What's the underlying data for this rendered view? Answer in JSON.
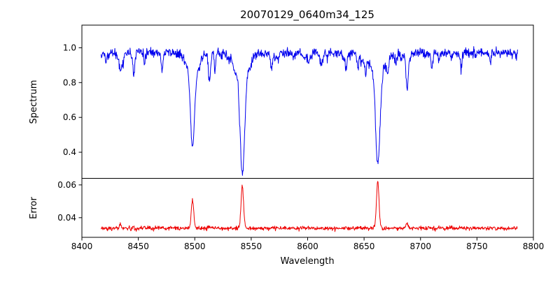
{
  "chart_data": {
    "type": "line",
    "title": "20070129_0640m34_125",
    "xlabel": "Wavelength",
    "xlim": [
      8400,
      8800
    ],
    "x_data_range": [
      8417,
      8786
    ],
    "xticks": {
      "values": [
        8400,
        8450,
        8500,
        8550,
        8600,
        8650,
        8700,
        8750,
        8800
      ],
      "labels": [
        "8400",
        "8450",
        "8500",
        "8550",
        "8600",
        "8650",
        "8700",
        "8750",
        "8800"
      ]
    },
    "panels": [
      {
        "name": "spectrum",
        "ylabel": "Spectrum",
        "ylim": [
          0.25,
          1.13
        ],
        "yticks": {
          "values": [
            0.4,
            0.6,
            0.8,
            1.0
          ],
          "labels": [
            "0.4",
            "0.6",
            "0.8",
            "1.0"
          ]
        },
        "color": "#0000ee",
        "continuum": 0.972,
        "noise_sigma": 0.014
      },
      {
        "name": "error",
        "ylabel": "Error",
        "ylim": [
          0.028,
          0.064
        ],
        "yticks": {
          "values": [
            0.04,
            0.06
          ],
          "labels": [
            "0.04",
            "0.06"
          ]
        },
        "color": "#ee0000",
        "baseline": 0.0335,
        "noise_sigma": 0.0006
      }
    ],
    "major_lines": [
      {
        "center": 8498.0,
        "spectrum_min": 0.43,
        "depth": 0.54,
        "sigma": 1.7,
        "error_peak": 0.051
      },
      {
        "center": 8542.1,
        "spectrum_min": 0.27,
        "depth": 0.7,
        "sigma": 1.9,
        "error_peak": 0.0595
      },
      {
        "center": 8662.1,
        "spectrum_min": 0.32,
        "depth": 0.65,
        "sigma": 1.8,
        "error_peak": 0.062
      }
    ],
    "minor_lines": [
      {
        "center": 8434,
        "depth": 0.07,
        "sigma": 0.6,
        "error_bump": 0.002
      },
      {
        "center": 8446,
        "depth": 0.12,
        "sigma": 0.9
      },
      {
        "center": 8471,
        "depth": 0.1,
        "sigma": 0.8
      },
      {
        "center": 8513,
        "depth": 0.16,
        "sigma": 0.9
      },
      {
        "center": 8518,
        "depth": 0.09,
        "sigma": 0.7
      },
      {
        "center": 8568,
        "depth": 0.09,
        "sigma": 0.8
      },
      {
        "center": 8634,
        "depth": 0.1,
        "sigma": 0.8
      },
      {
        "center": 8688,
        "depth": 0.19,
        "sigma": 1.0,
        "error_bump": 0.003
      },
      {
        "center": 8710,
        "depth": 0.09,
        "sigma": 0.7
      },
      {
        "center": 8736,
        "depth": 0.09,
        "sigma": 0.7
      }
    ],
    "random_lines": {
      "count": 60,
      "seed": 1234,
      "depth_max": 0.07,
      "sigma_range": [
        0.4,
        1.2
      ]
    },
    "error_spike_sigma": 1.1,
    "npoints": 1150,
    "spine_color": "#000000",
    "legend": "none",
    "grid": "off"
  }
}
